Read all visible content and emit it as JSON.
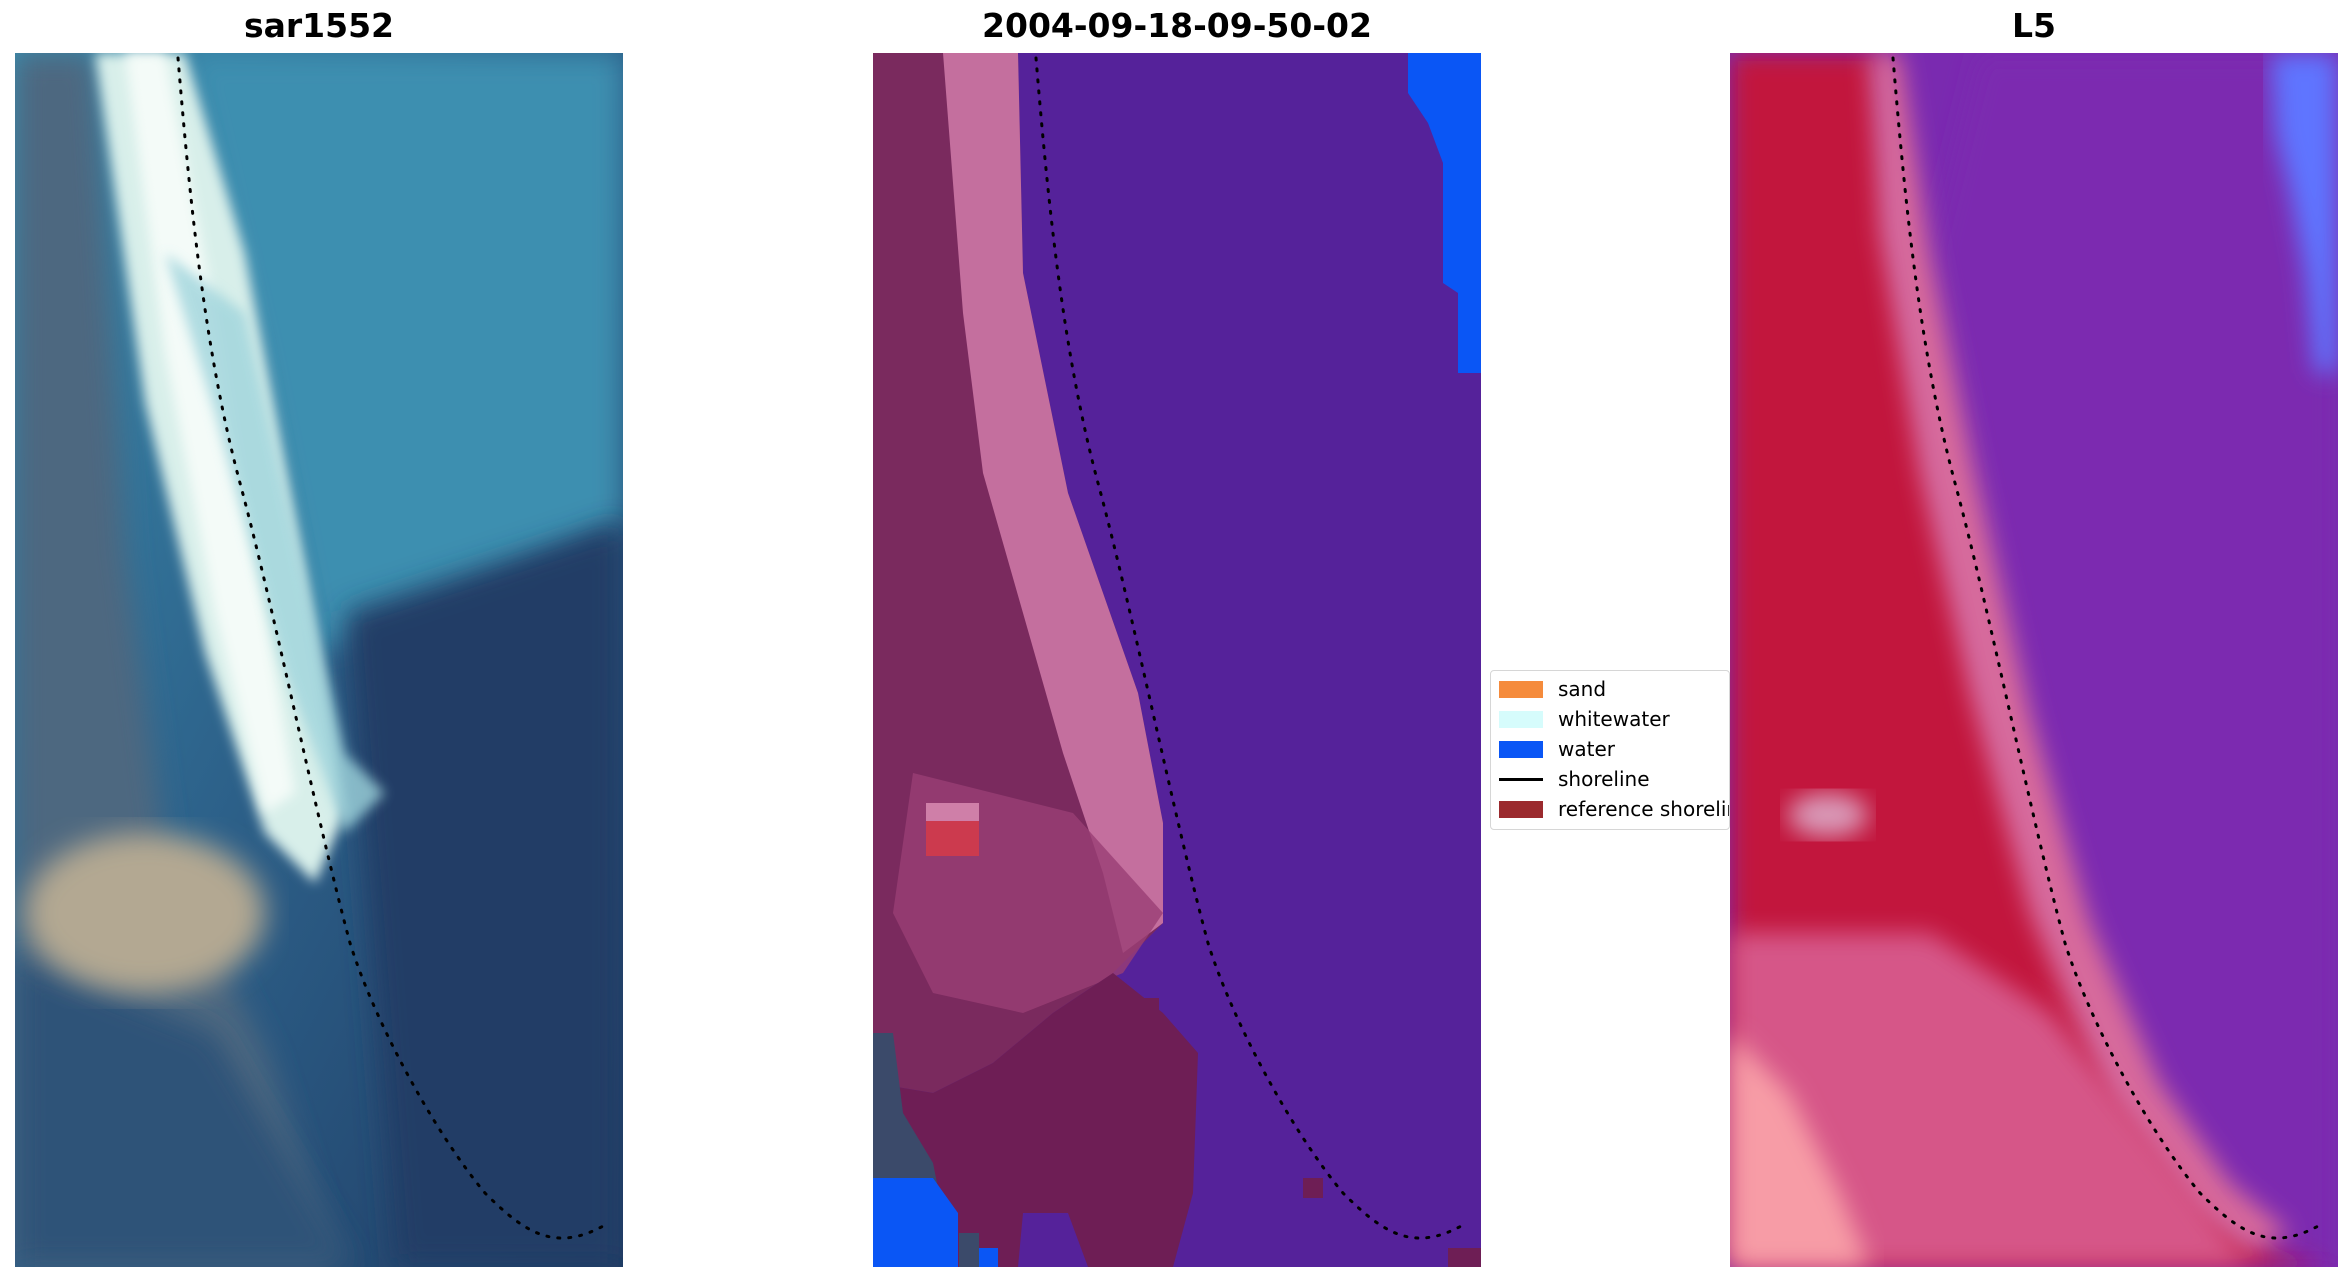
{
  "panels": [
    {
      "title": "sar1552"
    },
    {
      "title": "2004-09-18-09-50-02"
    },
    {
      "title": "L5"
    }
  ],
  "legend": {
    "items": [
      {
        "label": "sand",
        "kind": "patch",
        "color": "#f58b3c"
      },
      {
        "label": "whitewater",
        "kind": "patch",
        "color": "#d6fcfc"
      },
      {
        "label": "water",
        "kind": "patch",
        "color": "#0a56f5"
      },
      {
        "label": "shoreline",
        "kind": "line",
        "color": "#000000"
      },
      {
        "label": "reference shoreline",
        "kind": "patch",
        "color": "#9b2a2e"
      }
    ]
  },
  "colors": {
    "rgb_water_dark": "#24406a",
    "rgb_water_teal": "#3f8fac",
    "rgb_surf": "#e6f6f4",
    "rgb_land": "#4a6278",
    "rgb_sand": "#b8ad98",
    "class_ocean": "#55229a",
    "class_beach": "#c46f9e",
    "class_land": "#7a2a5e",
    "class_water": "#0a56f5",
    "index_land": "#c2123c",
    "index_water": "#7a2ab0",
    "index_pink": "#d96a98",
    "index_blue": "#5a72ff"
  }
}
